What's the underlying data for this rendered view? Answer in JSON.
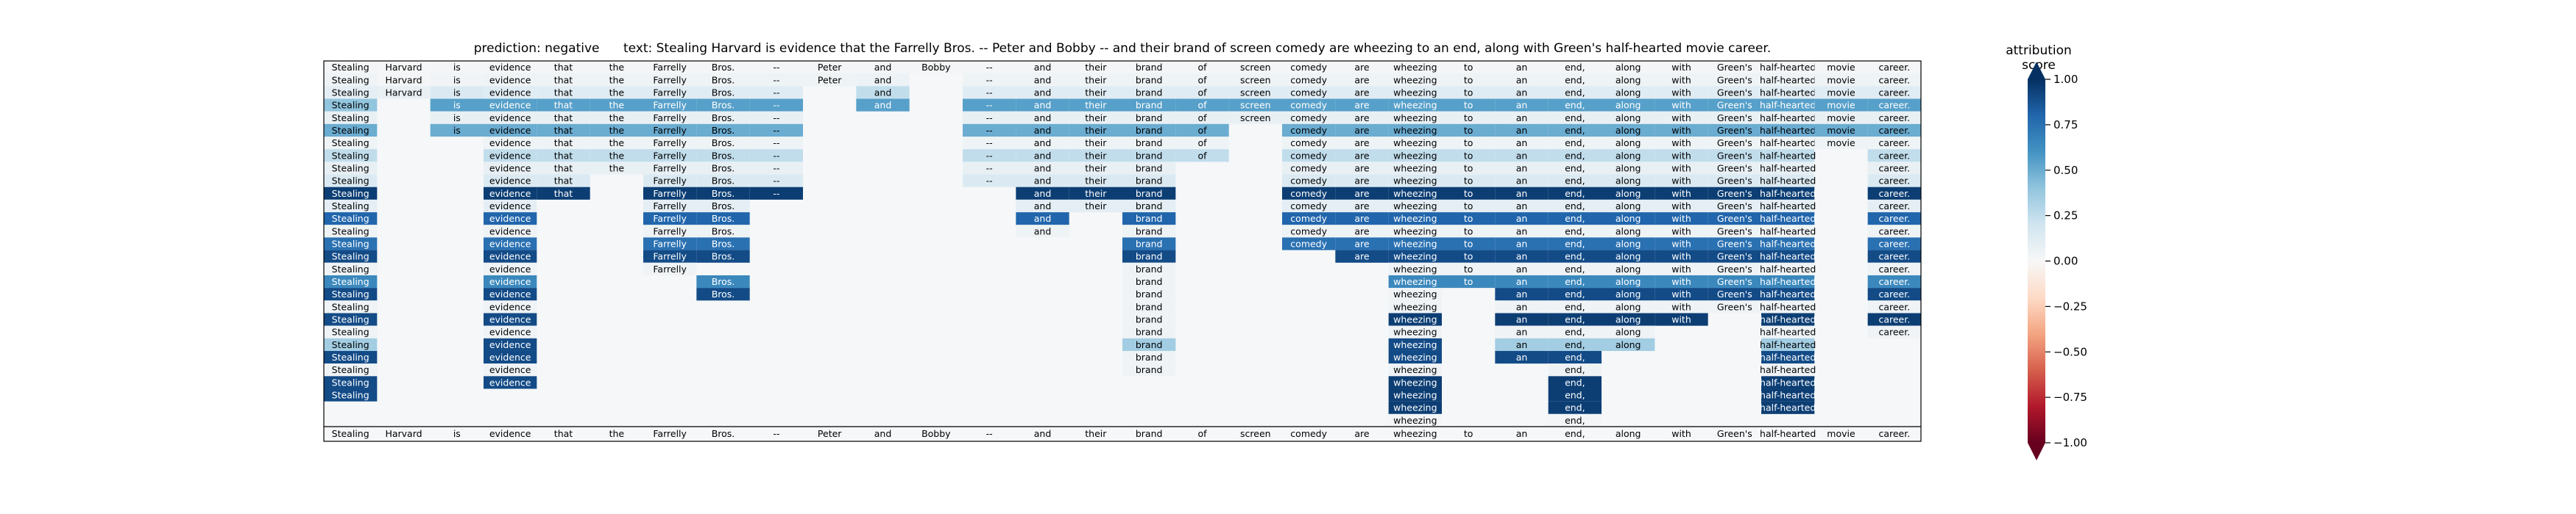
{
  "chart_data": {
    "type": "heatmap",
    "title": {
      "prediction_label": "prediction:",
      "prediction": "negative",
      "text_label": "text:",
      "text": "Stealing Harvard is evidence that the Farrelly Bros. -- Peter and Bobby -- and their brand of screen comedy are wheezing to an end, along with Green's half-hearted movie career."
    },
    "tokens": [
      "Stealing",
      "Harvard",
      "is",
      "evidence",
      "that",
      "the",
      "Farrelly",
      "Bros.",
      "--",
      "Peter",
      "and",
      "Bobby",
      "--",
      "and",
      "their",
      "brand",
      "of",
      "screen",
      "comedy",
      "are",
      "wheezing",
      "to",
      "an",
      "end,",
      "along",
      "with",
      "Green's",
      "half-hearted",
      "movie",
      "career."
    ],
    "rows": [
      "0.02 0.01 0.02 0.02 0.02 0.02 0.02 0.02 0.02 0.02 0.02 0.02 0.02 0.02 0.02 0.02 0.02 0.02 0.02 0.02 0.02 0.02 0.02 0.02 0.02 0.02 0.02 0.02 0.02 0.02",
      "0.05 0.02 0.03 0.05 0.05 0.05 0.05 0.05 0.05 0.05 0.06 n 0.05 0.05 0.05 0.05 0.05 0.05 0.05 0.05 0.05 0.05 0.05 0.05 0.05 0.05 0.05 0.05 0.05 0.05",
      "0.10 0.08 0.15 0.12 0.12 0.12 0.12 0.12 0.12 n 0.25 n 0.12 0.12 0.12 0.12 0.12 0.12 0.12 0.12 0.12 0.12 0.12 0.12 0.12 0.12 0.12 0.12 0.12 0.12",
      "0.40 n 0.55 0.55 0.55 0.55 0.55 0.55 0.55 n 0.55 n 0.55 0.55 0.55 0.55 0.55 0.55 0.55 0.55 0.55 0.55 0.55 0.55 0.55 0.55 0.55 0.55 0.55 0.55",
      "0.08 n 0.08 0.08 0.08 0.08 0.08 0.08 0.08 n n n 0.08 0.08 0.08 0.08 0.08 0.08 0.08 0.08 0.08 0.08 0.08 0.08 0.08 0.08 0.08 0.08 0.08 0.08",
      "0.50 n 0.50 0.50 0.50 0.50 0.50 0.50 0.50 n n n 0.50 0.50 0.50 0.50 0.50 n 0.50 0.50 0.50 0.50 0.50 0.50 0.50 0.50 0.50 0.50 0.50 0.50",
      "0.05 n n 0.05 0.05 0.05 0.05 0.05 0.05 n n n 0.05 0.05 0.05 0.05 0.05 n 0.05 0.05 0.05 0.05 0.05 0.05 0.05 0.05 0.05 0.05 0.05 0.05",
      "0.25 n n 0.25 0.25 0.25 0.25 0.25 0.25 n n n 0.25 0.25 0.25 0.25 0.25 n 0.25 0.25 0.25 0.25 0.25 0.25 0.25 0.25 0.25 0.25 n 0.25",
      "0.08 n n 0.08 0.08 0.08 0.08 0.08 0.08 n n n 0.08 0.08 0.08 0.08 n n 0.08 0.08 0.08 0.08 0.08 0.08 0.08 0.08 0.08 0.08 n 0.08",
      "0.15 n n 0.15 0.15 n 0.15 0.15 0.15 n n n 0.15 0.15 0.15 0.15 n n 0.15 0.15 0.15 0.15 0.15 0.15 0.15 0.15 0.15 0.15 n 0.15",
      "0.95 n n 0.95 0.95 n 0.95 0.95 0.95 n n n n 0.95 0.95 0.95 n n 0.95 0.95 0.95 0.95 0.95 0.95 0.95 0.95 0.95 0.95 n 0.95",
      "0.10 n n 0.10 n n 0.10 0.10 n n n n n 0.10 0.10 0.10 n n 0.10 0.10 0.10 0.10 0.10 0.10 0.10 0.10 0.10 0.10 n 0.10",
      "0.80 n n 0.80 n n 0.80 0.80 n n n n n 0.80 n 0.80 n n 0.80 0.80 0.80 0.80 0.80 0.80 0.80 0.80 0.80 0.80 n 0.80",
      "0.05 n n 0.05 n n 0.05 0.05 n n n n n 0.05 n 0.05 n n 0.05 0.05 0.05 0.05 0.05 0.05 0.05 0.05 0.05 0.05 n 0.05",
      "0.75 n n 0.75 n n 0.75 0.75 n n n n n n n 0.75 n n 0.75 0.75 0.75 0.75 0.75 0.75 0.75 0.75 0.75 0.75 n 0.75",
      "0.90 n n 0.90 n n 0.90 0.90 n n n n n n n 0.90 n n n 0.90 0.90 0.90 0.90 0.90 0.90 0.90 0.90 0.90 n 0.90",
      "0.04 n n 0.04 n n 0.04 n n n n n n n n 0.04 n n n n 0.04 0.04 0.04 0.04 0.04 0.04 0.04 0.04 n 0.04",
      "0.65 n n 0.65 n n n 0.65 n n n n n n n 0.04 n n n n 0.65 0.65 0.65 0.65 0.65 0.65 0.65 0.65 n 0.65",
      "0.90 n n 0.90 n n n 0.90 n n n n n n n 0.04 n n n n 0.04 n 0.90 0.90 0.90 0.90 0.90 0.90 n 0.90",
      "0.04 n n 0.04 n n n n n n n n n n n 0.04 n n n n 0.04 n 0.04 0.04 0.04 0.04 0.04 0.04 n 0.04",
      "0.90 n n 0.90 n n n n n n n n n n n 0.04 n n n n 0.95 n 0.95 0.95 0.95 0.95 n 0.95 n 0.95",
      "0.04 n n 0.04 n n n n n n n n n n n 0.04 n n n n 0.04 n 0.04 0.04 0.04 n n 0.04 n 0.04",
      "0.35 n n 0.90 n n n n n n n n n n n 0.35 n n n n 0.90 n 0.35 0.35 0.35 n n 0.35 n n",
      "0.90 n n 0.90 n n n n n n n n n n n 0.04 n n n n 0.90 n 0.90 0.90 n n n 0.90 n n",
      "0.04 n n 0.04 n n n n n n n n n n n 0.04 n n n n 0.04 n n 0.04 n n n 0.04 n n",
      "0.90 n n 0.90 n n n n n n n n n n n n n n n n 0.95 n n 0.95 n n n 0.95 n n",
      "0.90 n n n n n n n n n n n n n n n n n n n 0.95 n n 0.95 n n n 0.95 n n",
      "n n n n n n n n n n n n n n n n n n n n 0.95 n n 0.95 n n n 0.95 n n",
      "n n n n n n n n n n n n n n n n n n n n 0.02 n n 0.02 n n n n n n"
    ],
    "x_tick_labels": [
      "Stealing",
      "Harvard",
      "is",
      "evidence",
      "that",
      "the",
      "Farrelly",
      "Bros.",
      "--",
      "Peter",
      "and",
      "Bobby",
      "--",
      "and",
      "their",
      "brand",
      "of",
      "screen",
      "comedy",
      "are",
      "wheezing",
      "to",
      "an",
      "end,",
      "along",
      "with",
      "Green's",
      "half-hearted",
      "movie",
      "career."
    ],
    "colorbar": {
      "title": "attribution score",
      "min": -1.0,
      "max": 1.0,
      "ticks": [
        "1.00",
        "0.75",
        "0.50",
        "0.25",
        "0.00",
        "−0.25",
        "−0.50",
        "−0.75",
        "−1.00"
      ],
      "colormap": "RdBu"
    },
    "colors": {
      "positive": "#053061",
      "zero": "#f7f7f7",
      "negative": "#67001f"
    }
  }
}
